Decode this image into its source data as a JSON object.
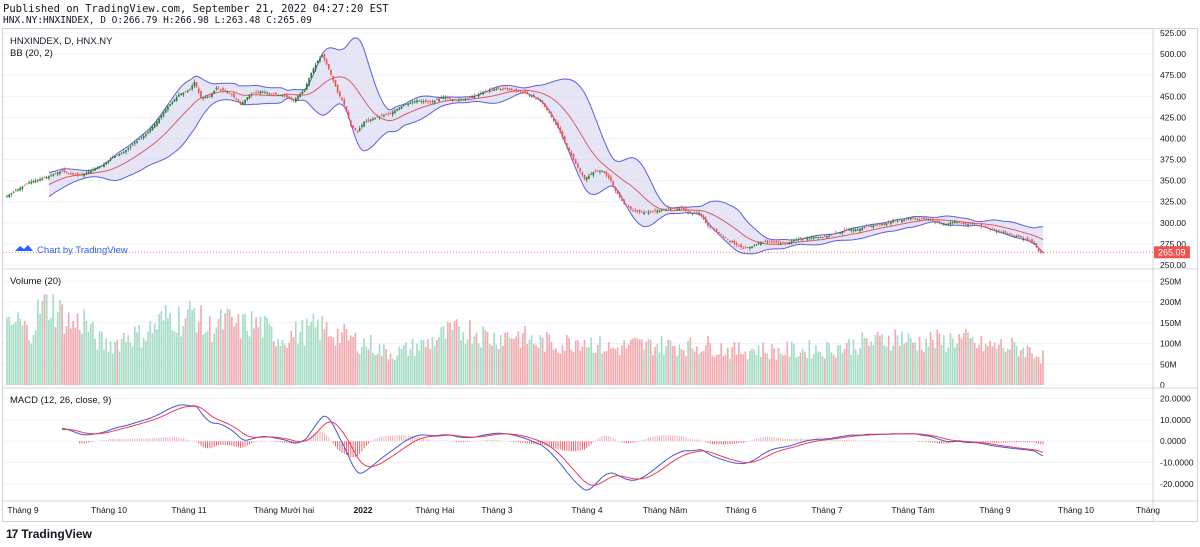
{
  "header": {
    "published": "Published on TradingView.com, September 21, 2022 04:27:20 EST",
    "ohlc": "HNX.NY:HNXINDEX, D O:266.79 H:266.98 L:263.48 C:265.09"
  },
  "footer": {
    "brand": "TradingView",
    "logo": "17"
  },
  "watermark": "Chart by TradingView",
  "chart_data": [
    {
      "type": "candlestick",
      "title": "HNXINDEX, D, HNX.NY",
      "subtitle": "BB (20, 2)",
      "ylim": [
        250,
        525
      ],
      "yticks": [
        "525.00",
        "500.00",
        "475.00",
        "450.00",
        "425.00",
        "400.00",
        "375.00",
        "350.00",
        "325.00",
        "300.00",
        "275.00",
        "250.00"
      ],
      "last_price_label": "265.09",
      "last_price": 265.09,
      "close_anchors": [
        [
          0,
          332
        ],
        [
          5,
          340
        ],
        [
          10,
          348
        ],
        [
          15,
          352
        ],
        [
          20,
          356
        ],
        [
          25,
          362
        ],
        [
          28,
          358
        ],
        [
          33,
          356
        ],
        [
          38,
          362
        ],
        [
          43,
          368
        ],
        [
          48,
          378
        ],
        [
          53,
          384
        ],
        [
          58,
          395
        ],
        [
          63,
          405
        ],
        [
          68,
          420
        ],
        [
          73,
          438
        ],
        [
          78,
          452
        ],
        [
          83,
          458
        ],
        [
          85,
          467
        ],
        [
          88,
          448
        ],
        [
          92,
          450
        ],
        [
          95,
          460
        ],
        [
          98,
          457
        ],
        [
          102,
          452
        ],
        [
          106,
          440
        ],
        [
          110,
          452
        ],
        [
          115,
          456
        ],
        [
          120,
          453
        ],
        [
          125,
          451
        ],
        [
          130,
          445
        ],
        [
          135,
          458
        ],
        [
          138,
          478
        ],
        [
          141,
          492
        ],
        [
          143,
          499
        ],
        [
          146,
          482
        ],
        [
          150,
          455
        ],
        [
          153,
          440
        ],
        [
          156,
          415
        ],
        [
          159,
          408
        ],
        [
          162,
          420
        ],
        [
          168,
          425
        ],
        [
          174,
          430
        ],
        [
          180,
          440
        ],
        [
          186,
          445
        ],
        [
          192,
          443
        ],
        [
          198,
          449
        ],
        [
          204,
          445
        ],
        [
          210,
          448
        ],
        [
          216,
          455
        ],
        [
          222,
          459
        ],
        [
          228,
          458
        ],
        [
          234,
          455
        ],
        [
          238,
          450
        ],
        [
          242,
          445
        ],
        [
          246,
          430
        ],
        [
          250,
          412
        ],
        [
          254,
          390
        ],
        [
          258,
          370
        ],
        [
          262,
          352
        ],
        [
          266,
          360
        ],
        [
          270,
          362
        ],
        [
          274,
          350
        ],
        [
          276,
          338
        ],
        [
          280,
          322
        ],
        [
          284,
          314
        ],
        [
          288,
          312
        ],
        [
          294,
          314
        ],
        [
          300,
          317
        ],
        [
          306,
          317
        ],
        [
          310,
          311
        ],
        [
          314,
          312
        ],
        [
          318,
          296
        ],
        [
          322,
          290
        ],
        [
          326,
          282
        ],
        [
          330,
          275
        ],
        [
          334,
          270
        ],
        [
          338,
          272
        ],
        [
          342,
          277
        ],
        [
          346,
          278
        ],
        [
          350,
          276
        ],
        [
          354,
          276
        ],
        [
          358,
          280
        ],
        [
          362,
          282
        ],
        [
          366,
          283
        ],
        [
          370,
          283
        ],
        [
          374,
          286
        ],
        [
          378,
          289
        ],
        [
          382,
          292
        ],
        [
          386,
          292
        ],
        [
          390,
          296
        ],
        [
          394,
          297
        ],
        [
          398,
          299
        ],
        [
          402,
          302
        ],
        [
          406,
          303
        ],
        [
          410,
          306
        ],
        [
          414,
          304
        ],
        [
          418,
          305
        ],
        [
          422,
          300
        ],
        [
          426,
          298
        ],
        [
          430,
          302
        ],
        [
          434,
          298
        ],
        [
          438,
          299
        ],
        [
          442,
          296
        ],
        [
          446,
          292
        ],
        [
          450,
          290
        ],
        [
          454,
          287
        ],
        [
          458,
          284
        ],
        [
          462,
          281
        ],
        [
          466,
          276
        ],
        [
          468,
          266
        ],
        [
          470,
          265.09
        ]
      ]
    },
    {
      "type": "bar",
      "title": "Volume (20)",
      "ylim": [
        0,
        270000000
      ],
      "yticks": [
        "250M",
        "200M",
        "150M",
        "100M",
        "50M",
        "0"
      ],
      "volume_anchors": [
        [
          0,
          130
        ],
        [
          5,
          150
        ],
        [
          10,
          120
        ],
        [
          15,
          180
        ],
        [
          20,
          190
        ],
        [
          25,
          165
        ],
        [
          30,
          140
        ],
        [
          35,
          155
        ],
        [
          40,
          110
        ],
        [
          45,
          95
        ],
        [
          50,
          100
        ],
        [
          55,
          120
        ],
        [
          60,
          115
        ],
        [
          65,
          130
        ],
        [
          70,
          150
        ],
        [
          75,
          165
        ],
        [
          80,
          150
        ],
        [
          85,
          175
        ],
        [
          90,
          130
        ],
        [
          95,
          140
        ],
        [
          100,
          150
        ],
        [
          105,
          135
        ],
        [
          110,
          145
        ],
        [
          115,
          140
        ],
        [
          120,
          120
        ],
        [
          125,
          110
        ],
        [
          130,
          120
        ],
        [
          135,
          125
        ],
        [
          140,
          135
        ],
        [
          145,
          130
        ],
        [
          150,
          120
        ],
        [
          155,
          110
        ],
        [
          160,
          100
        ],
        [
          165,
          95
        ],
        [
          170,
          80
        ],
        [
          175,
          75
        ],
        [
          180,
          80
        ],
        [
          185,
          90
        ],
        [
          190,
          95
        ],
        [
          195,
          110
        ],
        [
          200,
          120
        ],
        [
          205,
          125
        ],
        [
          210,
          130
        ],
        [
          215,
          120
        ],
        [
          220,
          110
        ],
        [
          225,
          115
        ],
        [
          230,
          120
        ],
        [
          235,
          110
        ],
        [
          240,
          100
        ],
        [
          245,
          100
        ],
        [
          250,
          95
        ],
        [
          255,
          100
        ],
        [
          260,
          110
        ],
        [
          265,
          100
        ],
        [
          270,
          90
        ],
        [
          275,
          85
        ],
        [
          280,
          90
        ],
        [
          285,
          95
        ],
        [
          290,
          92
        ],
        [
          295,
          95
        ],
        [
          300,
          92
        ],
        [
          305,
          95
        ],
        [
          310,
          90
        ],
        [
          315,
          95
        ],
        [
          320,
          92
        ],
        [
          325,
          85
        ],
        [
          330,
          80
        ],
        [
          335,
          82
        ],
        [
          340,
          85
        ],
        [
          345,
          80
        ],
        [
          350,
          78
        ],
        [
          355,
          82
        ],
        [
          360,
          80
        ],
        [
          365,
          85
        ],
        [
          370,
          82
        ],
        [
          375,
          88
        ],
        [
          380,
          90
        ],
        [
          385,
          95
        ],
        [
          390,
          100
        ],
        [
          395,
          102
        ],
        [
          400,
          110
        ],
        [
          405,
          115
        ],
        [
          410,
          100
        ],
        [
          415,
          100
        ],
        [
          420,
          105
        ],
        [
          425,
          100
        ],
        [
          430,
          110
        ],
        [
          435,
          105
        ],
        [
          440,
          95
        ],
        [
          445,
          90
        ],
        [
          450,
          92
        ],
        [
          455,
          90
        ],
        [
          460,
          85
        ],
        [
          465,
          80
        ],
        [
          470,
          65
        ]
      ]
    },
    {
      "type": "line",
      "title": "MACD (12, 26, close, 9)",
      "ylim": [
        -27,
        23
      ],
      "yticks": [
        "20.0000",
        "10.0000",
        "0.0000",
        "-10.0000",
        "-20.0000"
      ],
      "series": []
    }
  ],
  "x_axis": {
    "labels": [
      "Tháng 9",
      "Tháng 10",
      "Tháng 11",
      "Tháng Mười hai",
      "2022",
      "Tháng Hai",
      "Tháng 3",
      "Tháng 4",
      "Tháng Năm",
      "Tháng 6",
      "Tháng 7",
      "Tháng Tám",
      "Tháng 9",
      "Tháng 10",
      "Tháng"
    ]
  },
  "colors": {
    "up": "#26a69a",
    "up_fill": "#2e7d32",
    "down": "#ef5350",
    "vol_up": "#a5dcc4",
    "vol_down": "#f4a9ae",
    "bb_line": "#5b5fe0",
    "bb_fill": "#cfd0ee",
    "bb_basis": "#e05a6a",
    "macd": "#4b55d6",
    "signal": "#ef3e4a",
    "price_label_bg": "#ef5350",
    "grid": "#f0f3fa",
    "text": "#131722"
  }
}
